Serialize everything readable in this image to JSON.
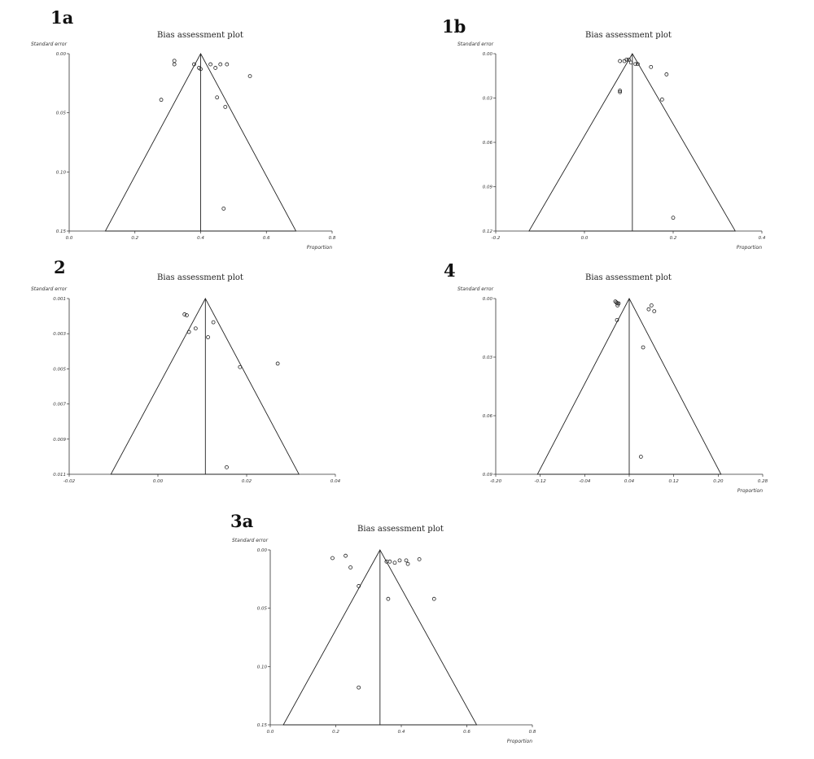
{
  "chart_data": [
    {
      "type": "scatter",
      "id": "p1a",
      "panel_label": "1a",
      "title": "Bias assessment plot",
      "xlabel": "Proportion",
      "ylabel": "Standard error",
      "xlim": [
        0.0,
        0.8
      ],
      "ylim": [
        0.0,
        0.15
      ],
      "y_inverted": true,
      "xticks": [
        0.0,
        0.2,
        0.4,
        0.6,
        0.8
      ],
      "xtick_labels": [
        "0.0",
        "0.2",
        "0.4",
        "0.6",
        "0.8"
      ],
      "yticks": [
        0.0,
        0.05,
        0.1,
        0.15
      ],
      "ytick_labels": [
        "0.00",
        "0.05",
        "0.10",
        "0.15"
      ],
      "pooled": 0.4,
      "funnel_bottom": [
        0.11,
        0.69
      ],
      "points": [
        [
          0.32,
          0.006
        ],
        [
          0.32,
          0.009
        ],
        [
          0.38,
          0.009
        ],
        [
          0.395,
          0.012
        ],
        [
          0.4,
          0.013
        ],
        [
          0.43,
          0.009
        ],
        [
          0.445,
          0.012
        ],
        [
          0.46,
          0.009
        ],
        [
          0.48,
          0.009
        ],
        [
          0.55,
          0.019
        ],
        [
          0.28,
          0.039
        ],
        [
          0.45,
          0.037
        ],
        [
          0.475,
          0.045
        ],
        [
          0.47,
          0.131
        ]
      ]
    },
    {
      "type": "scatter",
      "id": "p1b",
      "panel_label": "1b",
      "title": "Bias assessment plot",
      "xlabel": "Proportion",
      "ylabel": "Standard error",
      "xlim": [
        -0.2,
        0.4
      ],
      "ylim": [
        0.0,
        0.12
      ],
      "y_inverted": true,
      "xticks": [
        -0.2,
        0.0,
        0.2,
        0.4
      ],
      "xtick_labels": [
        "-0.2",
        "0.0",
        "0.2",
        "0.4"
      ],
      "yticks": [
        0.0,
        0.03,
        0.06,
        0.09,
        0.12
      ],
      "ytick_labels": [
        "0.00",
        "0.03",
        "0.06",
        "0.09",
        "0.12"
      ],
      "pooled": 0.108,
      "funnel_bottom": [
        -0.125,
        0.34
      ],
      "points": [
        [
          0.08,
          0.005
        ],
        [
          0.09,
          0.005
        ],
        [
          0.095,
          0.004
        ],
        [
          0.1,
          0.004
        ],
        [
          0.105,
          0.006
        ],
        [
          0.115,
          0.007
        ],
        [
          0.12,
          0.007
        ],
        [
          0.15,
          0.009
        ],
        [
          0.185,
          0.014
        ],
        [
          0.08,
          0.025
        ],
        [
          0.08,
          0.026
        ],
        [
          0.175,
          0.031
        ],
        [
          0.2,
          0.111
        ]
      ]
    },
    {
      "type": "scatter",
      "id": "p2",
      "panel_label": "2",
      "title": "Bias assessment plot",
      "xlabel": "",
      "ylabel": "Standard error",
      "xlim": [
        -0.02,
        0.04
      ],
      "ylim": [
        0.001,
        0.011
      ],
      "y_inverted": true,
      "xticks": [
        -0.02,
        0.0,
        0.02,
        0.04
      ],
      "xtick_labels": [
        "-0.02",
        "0.00",
        "0.02",
        "0.04"
      ],
      "yticks": [
        0.001,
        0.003,
        0.005,
        0.007,
        0.009,
        0.011
      ],
      "ytick_labels": [
        "0.001",
        "0.003",
        "0.005",
        "0.007",
        "0.009",
        "0.011"
      ],
      "pooled": 0.0107,
      "funnel_bottom": [
        -0.0106,
        0.0318
      ],
      "points": [
        [
          0.006,
          0.0019
        ],
        [
          0.0065,
          0.00195
        ],
        [
          0.0125,
          0.00235
        ],
        [
          0.0085,
          0.0027
        ],
        [
          0.007,
          0.0029
        ],
        [
          0.0113,
          0.0032
        ],
        [
          0.0185,
          0.0049
        ],
        [
          0.027,
          0.0047
        ],
        [
          0.0155,
          0.0106
        ]
      ]
    },
    {
      "type": "scatter",
      "id": "p4",
      "panel_label": "4",
      "title": "Bias assessment plot",
      "xlabel": "Proportion",
      "ylabel": "Standard error",
      "xlim": [
        -0.2,
        0.28
      ],
      "ylim": [
        0.0,
        0.09
      ],
      "y_inverted": true,
      "xticks": [
        -0.2,
        -0.12,
        -0.04,
        0.04,
        0.12,
        0.2,
        0.28
      ],
      "xtick_labels": [
        "-0.20",
        "-0.12",
        "-0.04",
        "0.04",
        "0.12",
        "0.20",
        "0.28"
      ],
      "yticks": [
        0.0,
        0.03,
        0.06,
        0.09
      ],
      "ytick_labels": [
        "0.00",
        "0.03",
        "0.06",
        "0.09"
      ],
      "pooled": 0.04,
      "funnel_bottom": [
        -0.125,
        0.205
      ],
      "points": [
        [
          0.015,
          0.0015
        ],
        [
          0.017,
          0.002
        ],
        [
          0.019,
          0.0025
        ],
        [
          0.021,
          0.0025
        ],
        [
          0.019,
          0.0035
        ],
        [
          0.08,
          0.0035
        ],
        [
          0.075,
          0.0055
        ],
        [
          0.085,
          0.0065
        ],
        [
          0.018,
          0.011
        ],
        [
          0.065,
          0.025
        ],
        [
          0.061,
          0.081
        ]
      ]
    },
    {
      "type": "scatter",
      "id": "p3a",
      "panel_label": "3a",
      "title": "Bias assessment plot",
      "xlabel": "Proportion",
      "ylabel": "Standard error",
      "xlim": [
        0.0,
        0.8
      ],
      "ylim": [
        0.0,
        0.15
      ],
      "y_inverted": true,
      "xticks": [
        0.0,
        0.2,
        0.4,
        0.6,
        0.8
      ],
      "xtick_labels": [
        "0.0",
        "0.2",
        "0.4",
        "0.6",
        "0.8"
      ],
      "yticks": [
        0.0,
        0.05,
        0.1,
        0.15
      ],
      "ytick_labels": [
        "0.00",
        "0.05",
        "0.10",
        "0.15"
      ],
      "pooled": 0.335,
      "funnel_bottom": [
        0.04,
        0.63
      ],
      "points": [
        [
          0.19,
          0.007
        ],
        [
          0.23,
          0.005
        ],
        [
          0.245,
          0.015
        ],
        [
          0.355,
          0.01
        ],
        [
          0.365,
          0.01
        ],
        [
          0.38,
          0.011
        ],
        [
          0.395,
          0.009
        ],
        [
          0.415,
          0.009
        ],
        [
          0.42,
          0.012
        ],
        [
          0.455,
          0.008
        ],
        [
          0.27,
          0.031
        ],
        [
          0.36,
          0.042
        ],
        [
          0.5,
          0.042
        ],
        [
          0.27,
          0.118
        ]
      ]
    }
  ]
}
